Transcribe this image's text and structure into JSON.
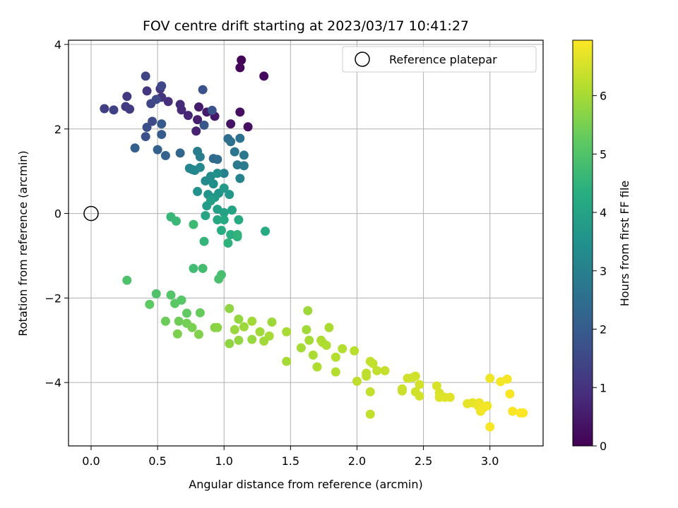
{
  "chart_data": {
    "type": "scatter",
    "title": "FOV centre drift starting at 2023/03/17 10:41:27",
    "xlabel": "Angular distance from reference (arcmin)",
    "ylabel": "Rotation from reference (arcmin)",
    "xlim": [
      -0.17,
      3.4
    ],
    "ylim": [
      -5.5,
      4.1
    ],
    "xticks": [
      0.0,
      0.5,
      1.0,
      1.5,
      2.0,
      2.5,
      3.0
    ],
    "xtick_labels": [
      "0.0",
      "0.5",
      "1.0",
      "1.5",
      "2.0",
      "2.5",
      "3.0"
    ],
    "yticks": [
      -4,
      -2,
      0,
      2,
      4
    ],
    "ytick_labels": [
      "−4",
      "−2",
      "0",
      "2",
      "4"
    ],
    "grid": true,
    "colormap": "viridis",
    "colorbar": {
      "label": "Hours from first FF file",
      "range": [
        0,
        6.95
      ],
      "ticks": [
        0,
        1,
        2,
        3,
        4,
        5,
        6
      ],
      "tick_labels": [
        "0",
        "1",
        "2",
        "3",
        "4",
        "5",
        "6"
      ]
    },
    "legend": {
      "position": "top-right",
      "entries": [
        "Reference platepar"
      ]
    },
    "reference_point": {
      "x": 0.0,
      "y": 0.0
    },
    "series": [
      {
        "points": [
          [
            1.13,
            3.63,
            0.05
          ],
          [
            1.12,
            3.45,
            0.1
          ],
          [
            1.3,
            3.25,
            0.15
          ],
          [
            1.12,
            2.4,
            0.25
          ],
          [
            1.18,
            2.05,
            0.3
          ],
          [
            1.05,
            2.12,
            0.35
          ],
          [
            0.93,
            2.3,
            0.45
          ],
          [
            0.87,
            2.4,
            0.5
          ],
          [
            0.81,
            2.52,
            0.55
          ],
          [
            0.8,
            2.22,
            0.6
          ],
          [
            0.79,
            1.95,
            0.65
          ],
          [
            0.73,
            2.32,
            0.75
          ],
          [
            0.68,
            2.45,
            0.8
          ],
          [
            0.67,
            2.58,
            0.85
          ],
          [
            0.58,
            2.65,
            0.95
          ],
          [
            0.53,
            2.75,
            1.0
          ],
          [
            0.52,
            2.95,
            1.05
          ],
          [
            0.42,
            2.9,
            1.1
          ],
          [
            0.27,
            2.77,
            1.15
          ],
          [
            0.26,
            2.53,
            1.2
          ],
          [
            0.29,
            2.47,
            1.25
          ],
          [
            0.1,
            2.48,
            1.3
          ],
          [
            0.17,
            2.45,
            1.35
          ],
          [
            0.41,
            3.25,
            1.4
          ],
          [
            0.45,
            2.6,
            1.45
          ],
          [
            0.53,
            3.02,
            1.5
          ],
          [
            0.49,
            2.7,
            1.55
          ],
          [
            0.46,
            2.18,
            1.6
          ],
          [
            0.42,
            2.04,
            1.65
          ],
          [
            0.41,
            1.82,
            1.7
          ],
          [
            0.84,
            2.93,
            1.75
          ],
          [
            0.91,
            2.44,
            1.8
          ],
          [
            0.85,
            2.09,
            1.9
          ],
          [
            0.53,
            2.12,
            1.95
          ],
          [
            0.53,
            1.87,
            2.0
          ],
          [
            0.33,
            1.55,
            2.1
          ],
          [
            0.5,
            1.51,
            2.15
          ],
          [
            0.56,
            1.37,
            2.2
          ],
          [
            0.67,
            1.43,
            2.3
          ],
          [
            0.92,
            1.3,
            2.4
          ],
          [
            0.95,
            1.28,
            2.45
          ],
          [
            1.03,
            1.77,
            2.5
          ],
          [
            1.05,
            1.7,
            2.55
          ],
          [
            1.12,
            1.78,
            2.6
          ],
          [
            1.08,
            1.46,
            2.7
          ],
          [
            1.15,
            1.38,
            2.75
          ],
          [
            1.1,
            1.15,
            2.8
          ],
          [
            1.15,
            1.13,
            2.85
          ],
          [
            0.8,
            1.47,
            2.9
          ],
          [
            0.82,
            1.34,
            2.95
          ],
          [
            1.0,
            0.95,
            3.0
          ],
          [
            1.12,
            0.83,
            3.05
          ],
          [
            0.76,
            1.04,
            3.1
          ],
          [
            0.74,
            1.07,
            3.15
          ],
          [
            0.78,
            1.02,
            3.2
          ],
          [
            0.82,
            1.09,
            3.25
          ],
          [
            0.86,
            0.77,
            3.3
          ],
          [
            0.9,
            0.88,
            3.35
          ],
          [
            0.92,
            0.7,
            3.4
          ],
          [
            0.95,
            0.95,
            3.45
          ],
          [
            0.8,
            0.52,
            3.5
          ],
          [
            0.88,
            0.45,
            3.55
          ],
          [
            0.96,
            0.48,
            3.6
          ],
          [
            1.04,
            0.45,
            3.65
          ],
          [
            1.0,
            0.6,
            3.7
          ],
          [
            0.93,
            0.38,
            3.75
          ],
          [
            0.87,
            0.18,
            3.8
          ],
          [
            0.9,
            0.3,
            3.85
          ],
          [
            0.95,
            0.1,
            3.9
          ],
          [
            1.0,
            0.02,
            3.95
          ],
          [
            1.06,
            0.08,
            4.0
          ],
          [
            0.86,
            -0.05,
            4.05
          ],
          [
            0.95,
            -0.15,
            4.1
          ],
          [
            1.0,
            -0.15,
            4.15
          ],
          [
            1.11,
            -0.15,
            4.2
          ],
          [
            1.31,
            -0.42,
            4.25
          ],
          [
            0.98,
            -0.4,
            4.3
          ],
          [
            1.05,
            -0.5,
            4.35
          ],
          [
            1.1,
            -0.55,
            4.4
          ],
          [
            1.03,
            -0.7,
            4.45
          ],
          [
            1.1,
            -0.5,
            4.5
          ],
          [
            0.85,
            -0.66,
            4.55
          ],
          [
            0.6,
            -0.08,
            4.6
          ],
          [
            0.64,
            -0.18,
            4.65
          ],
          [
            0.77,
            -0.26,
            4.7
          ],
          [
            0.77,
            -1.3,
            4.75
          ],
          [
            0.84,
            -1.3,
            4.8
          ],
          [
            0.98,
            -1.45,
            4.85
          ],
          [
            0.96,
            -1.55,
            4.9
          ],
          [
            0.27,
            -1.58,
            4.95
          ],
          [
            0.49,
            -1.9,
            5.0
          ],
          [
            0.6,
            -1.93,
            5.05
          ],
          [
            0.68,
            -2.05,
            5.1
          ],
          [
            0.63,
            -2.13,
            5.15
          ],
          [
            0.44,
            -2.15,
            5.2
          ],
          [
            0.72,
            -2.36,
            5.25
          ],
          [
            0.82,
            -2.35,
            5.3
          ],
          [
            0.56,
            -2.55,
            5.35
          ],
          [
            0.66,
            -2.55,
            5.4
          ],
          [
            0.72,
            -2.6,
            5.45
          ],
          [
            0.76,
            -2.7,
            5.5
          ],
          [
            0.65,
            -2.85,
            5.55
          ],
          [
            0.81,
            -2.86,
            5.6
          ],
          [
            0.93,
            -2.7,
            5.65
          ],
          [
            0.95,
            -2.7,
            5.7
          ],
          [
            1.04,
            -2.25,
            5.75
          ],
          [
            1.11,
            -2.5,
            5.8
          ],
          [
            1.08,
            -2.75,
            5.85
          ],
          [
            1.15,
            -2.68,
            5.9
          ],
          [
            1.21,
            -2.55,
            5.95
          ],
          [
            1.36,
            -2.57,
            5.9
          ],
          [
            1.27,
            -2.8,
            5.95
          ],
          [
            1.34,
            -2.9,
            6.0
          ],
          [
            1.47,
            -2.8,
            6.05
          ],
          [
            1.21,
            -2.98,
            5.85
          ],
          [
            1.11,
            -3.0,
            5.8
          ],
          [
            1.04,
            -3.08,
            5.75
          ],
          [
            1.3,
            -3.02,
            5.95
          ],
          [
            1.47,
            -3.5,
            6.0
          ],
          [
            1.63,
            -2.3,
            5.9
          ],
          [
            1.62,
            -2.75,
            5.95
          ],
          [
            1.64,
            -3.0,
            6.0
          ],
          [
            1.58,
            -3.18,
            6.0
          ],
          [
            1.67,
            -3.35,
            6.05
          ],
          [
            1.73,
            -3.0,
            6.05
          ],
          [
            1.74,
            -3.05,
            6.1
          ],
          [
            1.77,
            -3.12,
            6.1
          ],
          [
            1.79,
            -2.7,
            6.05
          ],
          [
            1.7,
            -3.63,
            6.1
          ],
          [
            1.84,
            -3.4,
            6.15
          ],
          [
            1.84,
            -3.75,
            6.15
          ],
          [
            1.89,
            -3.2,
            6.15
          ],
          [
            1.98,
            -3.25,
            6.2
          ],
          [
            2.0,
            -3.97,
            6.25
          ],
          [
            2.07,
            -3.85,
            6.25
          ],
          [
            2.07,
            -3.78,
            6.25
          ],
          [
            2.1,
            -3.5,
            6.3
          ],
          [
            2.12,
            -3.55,
            6.3
          ],
          [
            2.15,
            -3.72,
            6.3
          ],
          [
            2.21,
            -3.72,
            6.35
          ],
          [
            2.1,
            -4.22,
            6.3
          ],
          [
            2.1,
            -4.75,
            6.3
          ],
          [
            2.34,
            -4.15,
            6.4
          ],
          [
            2.34,
            -4.2,
            6.4
          ],
          [
            2.38,
            -3.9,
            6.45
          ],
          [
            2.42,
            -3.88,
            6.45
          ],
          [
            2.44,
            -3.85,
            6.45
          ],
          [
            2.44,
            -4.22,
            6.45
          ],
          [
            2.47,
            -4.05,
            6.5
          ],
          [
            2.47,
            -4.32,
            6.5
          ],
          [
            2.6,
            -4.08,
            6.55
          ],
          [
            2.62,
            -4.25,
            6.55
          ],
          [
            2.62,
            -4.35,
            6.6
          ],
          [
            2.66,
            -4.35,
            6.6
          ],
          [
            2.7,
            -4.35,
            6.65
          ],
          [
            2.83,
            -4.5,
            6.7
          ],
          [
            2.87,
            -4.48,
            6.7
          ],
          [
            2.92,
            -4.48,
            6.75
          ],
          [
            2.91,
            -4.55,
            6.75
          ],
          [
            2.93,
            -4.68,
            6.8
          ],
          [
            2.98,
            -4.55,
            6.8
          ],
          [
            3.0,
            -3.9,
            6.8
          ],
          [
            3.08,
            -3.98,
            6.85
          ],
          [
            3.13,
            -3.92,
            6.85
          ],
          [
            3.15,
            -4.27,
            6.9
          ],
          [
            3.17,
            -4.68,
            6.9
          ],
          [
            3.23,
            -4.72,
            6.95
          ],
          [
            3.25,
            -4.72,
            6.95
          ],
          [
            3.0,
            -5.05,
            6.9
          ],
          [
            2.95,
            -4.6,
            6.85
          ]
        ]
      }
    ]
  }
}
